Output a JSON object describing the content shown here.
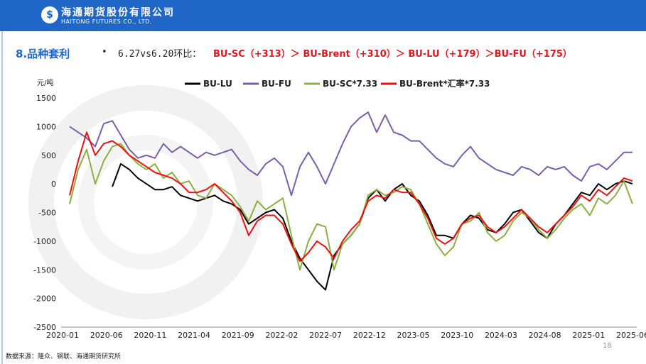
{
  "header": {
    "logo_cn": "海通期货股份有限公司",
    "logo_en": "HAITONG FUTURES CO., LTD."
  },
  "section": {
    "title": "8.品种套利",
    "bullet": "•",
    "subtitle_prefix": "6.27vs6.20环比：",
    "subtitle_ranking": "BU-SC（+313）＞ BU-Brent（+310）＞ BU-LU（+179）＞BU-FU（+175）"
  },
  "footer": {
    "source": "数据来源：隆众、钢联、海通期货研究所",
    "page_number": "18"
  },
  "colors": {
    "brand": "#1f66c7",
    "highlight": "#e8141b"
  },
  "chart_data": {
    "type": "line",
    "ylabel": "元/吨",
    "ylim": [
      -2500,
      1500
    ],
    "yticks": [
      1500,
      1000,
      500,
      0,
      -500,
      -1000,
      -1500,
      -2000,
      -2500
    ],
    "x_range": [
      "2020-01",
      "2025-07"
    ],
    "xticks": [
      "2020-01",
      "2020-06",
      "2020-11",
      "2021-04",
      "2021-09",
      "2022-02",
      "2022-07",
      "2022-12",
      "2023-05",
      "2023-10",
      "2024-03",
      "2024-08",
      "2025-01",
      "2025-06"
    ],
    "legend_position": "top",
    "grid": false,
    "series": [
      {
        "name": "BU-LU",
        "color": "#000000",
        "points": [
          [
            "2020-06",
            -50
          ],
          [
            "2020-07",
            350
          ],
          [
            "2020-08",
            250
          ],
          [
            "2020-09",
            100
          ],
          [
            "2020-10",
            0
          ],
          [
            "2020-11",
            -100
          ],
          [
            "2020-12",
            -100
          ],
          [
            "2021-01",
            -50
          ],
          [
            "2021-02",
            -200
          ],
          [
            "2021-03",
            -250
          ],
          [
            "2021-04",
            -300
          ],
          [
            "2021-05",
            -250
          ],
          [
            "2021-06",
            -200
          ],
          [
            "2021-07",
            -300
          ],
          [
            "2021-08",
            -350
          ],
          [
            "2021-09",
            -450
          ],
          [
            "2021-10",
            -700
          ],
          [
            "2021-11",
            -600
          ],
          [
            "2021-12",
            -500
          ],
          [
            "2022-01",
            -450
          ],
          [
            "2022-02",
            -600
          ],
          [
            "2022-03",
            -1000
          ],
          [
            "2022-04",
            -1300
          ],
          [
            "2022-05",
            -1500
          ],
          [
            "2022-06",
            -1700
          ],
          [
            "2022-07",
            -1850
          ],
          [
            "2022-08",
            -1250
          ],
          [
            "2022-09",
            -1050
          ],
          [
            "2022-10",
            -900
          ],
          [
            "2022-11",
            -700
          ],
          [
            "2022-12",
            -250
          ],
          [
            "2023-01",
            -100
          ],
          [
            "2023-02",
            -300
          ],
          [
            "2023-03",
            -100
          ],
          [
            "2023-04",
            0
          ],
          [
            "2023-05",
            -200
          ],
          [
            "2023-06",
            -300
          ],
          [
            "2023-07",
            -550
          ],
          [
            "2023-08",
            -900
          ],
          [
            "2023-09",
            -900
          ],
          [
            "2023-10",
            -950
          ],
          [
            "2023-11",
            -700
          ],
          [
            "2023-12",
            -550
          ],
          [
            "2024-01",
            -600
          ],
          [
            "2024-02",
            -800
          ],
          [
            "2024-03",
            -850
          ],
          [
            "2024-04",
            -700
          ],
          [
            "2024-05",
            -500
          ],
          [
            "2024-06",
            -450
          ],
          [
            "2024-07",
            -650
          ],
          [
            "2024-08",
            -850
          ],
          [
            "2024-09",
            -950
          ],
          [
            "2024-10",
            -700
          ],
          [
            "2024-11",
            -550
          ],
          [
            "2024-12",
            -350
          ],
          [
            "2025-01",
            -150
          ],
          [
            "2025-02",
            -200
          ],
          [
            "2025-03",
            0
          ],
          [
            "2025-04",
            -100
          ],
          [
            "2025-05",
            0
          ],
          [
            "2025-06",
            50
          ],
          [
            "2025-07",
            0
          ]
        ]
      },
      {
        "name": "BU-FU",
        "color": "#7a5ea8",
        "points": [
          [
            "2020-01",
            1000
          ],
          [
            "2020-02",
            900
          ],
          [
            "2020-03",
            800
          ],
          [
            "2020-04",
            650
          ],
          [
            "2020-05",
            1050
          ],
          [
            "2020-06",
            1100
          ],
          [
            "2020-07",
            850
          ],
          [
            "2020-08",
            600
          ],
          [
            "2020-09",
            450
          ],
          [
            "2020-10",
            500
          ],
          [
            "2020-11",
            450
          ],
          [
            "2020-12",
            700
          ],
          [
            "2021-01",
            550
          ],
          [
            "2021-02",
            650
          ],
          [
            "2021-03",
            550
          ],
          [
            "2021-04",
            450
          ],
          [
            "2021-05",
            550
          ],
          [
            "2021-06",
            500
          ],
          [
            "2021-07",
            550
          ],
          [
            "2021-08",
            600
          ],
          [
            "2021-09",
            400
          ],
          [
            "2021-10",
            250
          ],
          [
            "2021-11",
            150
          ],
          [
            "2021-12",
            350
          ],
          [
            "2022-01",
            450
          ],
          [
            "2022-02",
            300
          ],
          [
            "2022-03",
            -200
          ],
          [
            "2022-04",
            300
          ],
          [
            "2022-05",
            550
          ],
          [
            "2022-06",
            300
          ],
          [
            "2022-07",
            0
          ],
          [
            "2022-08",
            350
          ],
          [
            "2022-09",
            700
          ],
          [
            "2022-10",
            1000
          ],
          [
            "2022-11",
            1150
          ],
          [
            "2022-12",
            1250
          ],
          [
            "2023-01",
            900
          ],
          [
            "2023-02",
            1200
          ],
          [
            "2023-03",
            900
          ],
          [
            "2023-04",
            850
          ],
          [
            "2023-05",
            750
          ],
          [
            "2023-06",
            750
          ],
          [
            "2023-07",
            600
          ],
          [
            "2023-08",
            450
          ],
          [
            "2023-09",
            350
          ],
          [
            "2023-10",
            300
          ],
          [
            "2023-11",
            500
          ],
          [
            "2023-12",
            650
          ],
          [
            "2024-01",
            450
          ],
          [
            "2024-02",
            350
          ],
          [
            "2024-03",
            250
          ],
          [
            "2024-04",
            200
          ],
          [
            "2024-05",
            150
          ],
          [
            "2024-06",
            300
          ],
          [
            "2024-07",
            250
          ],
          [
            "2024-08",
            150
          ],
          [
            "2024-09",
            300
          ],
          [
            "2024-10",
            250
          ],
          [
            "2024-11",
            300
          ],
          [
            "2024-12",
            150
          ],
          [
            "2025-01",
            50
          ],
          [
            "2025-02",
            300
          ],
          [
            "2025-03",
            350
          ],
          [
            "2025-04",
            250
          ],
          [
            "2025-05",
            400
          ],
          [
            "2025-06",
            550
          ],
          [
            "2025-07",
            550
          ]
        ]
      },
      {
        "name": "BU-SC*7.33",
        "color": "#8cb040",
        "points": [
          [
            "2020-01",
            -350
          ],
          [
            "2020-02",
            250
          ],
          [
            "2020-03",
            600
          ],
          [
            "2020-04",
            0
          ],
          [
            "2020-05",
            400
          ],
          [
            "2020-06",
            650
          ],
          [
            "2020-07",
            700
          ],
          [
            "2020-08",
            500
          ],
          [
            "2020-09",
            350
          ],
          [
            "2020-10",
            250
          ],
          [
            "2020-11",
            350
          ],
          [
            "2020-12",
            100
          ],
          [
            "2021-01",
            200
          ],
          [
            "2021-02",
            0
          ],
          [
            "2021-03",
            50
          ],
          [
            "2021-04",
            -200
          ],
          [
            "2021-05",
            -250
          ],
          [
            "2021-06",
            0
          ],
          [
            "2021-07",
            -100
          ],
          [
            "2021-08",
            -200
          ],
          [
            "2021-09",
            -400
          ],
          [
            "2021-10",
            -650
          ],
          [
            "2021-11",
            -300
          ],
          [
            "2021-12",
            -450
          ],
          [
            "2022-01",
            -350
          ],
          [
            "2022-02",
            -250
          ],
          [
            "2022-03",
            -900
          ],
          [
            "2022-04",
            -1500
          ],
          [
            "2022-05",
            -1000
          ],
          [
            "2022-06",
            -700
          ],
          [
            "2022-07",
            -750
          ],
          [
            "2022-08",
            -1500
          ],
          [
            "2022-09",
            -1050
          ],
          [
            "2022-10",
            -900
          ],
          [
            "2022-11",
            -700
          ],
          [
            "2022-12",
            -200
          ],
          [
            "2023-01",
            -100
          ],
          [
            "2023-02",
            -200
          ],
          [
            "2023-03",
            -150
          ],
          [
            "2023-04",
            -50
          ],
          [
            "2023-05",
            -100
          ],
          [
            "2023-06",
            -350
          ],
          [
            "2023-07",
            -700
          ],
          [
            "2023-08",
            -1050
          ],
          [
            "2023-09",
            -1250
          ],
          [
            "2023-10",
            -1100
          ],
          [
            "2023-11",
            -700
          ],
          [
            "2023-12",
            -650
          ],
          [
            "2024-01",
            -500
          ],
          [
            "2024-02",
            -850
          ],
          [
            "2024-03",
            -1000
          ],
          [
            "2024-04",
            -900
          ],
          [
            "2024-05",
            -650
          ],
          [
            "2024-06",
            -500
          ],
          [
            "2024-07",
            -600
          ],
          [
            "2024-08",
            -800
          ],
          [
            "2024-09",
            -950
          ],
          [
            "2024-10",
            -800
          ],
          [
            "2024-11",
            -600
          ],
          [
            "2024-12",
            -450
          ],
          [
            "2025-01",
            -350
          ],
          [
            "2025-02",
            -550
          ],
          [
            "2025-03",
            -250
          ],
          [
            "2025-04",
            -350
          ],
          [
            "2025-05",
            -200
          ],
          [
            "2025-06",
            50
          ],
          [
            "2025-07",
            -350
          ]
        ]
      },
      {
        "name": "BU-Brent*汇率*7.33",
        "color": "#ee1111",
        "points": [
          [
            "2020-01",
            -200
          ],
          [
            "2020-02",
            400
          ],
          [
            "2020-03",
            900
          ],
          [
            "2020-04",
            500
          ],
          [
            "2020-05",
            700
          ],
          [
            "2020-06",
            750
          ],
          [
            "2020-07",
            650
          ],
          [
            "2020-08",
            500
          ],
          [
            "2020-09",
            400
          ],
          [
            "2020-10",
            300
          ],
          [
            "2020-11",
            200
          ],
          [
            "2020-12",
            150
          ],
          [
            "2021-01",
            100
          ],
          [
            "2021-02",
            0
          ],
          [
            "2021-03",
            -150
          ],
          [
            "2021-04",
            -150
          ],
          [
            "2021-05",
            -100
          ],
          [
            "2021-06",
            0
          ],
          [
            "2021-07",
            -150
          ],
          [
            "2021-08",
            -300
          ],
          [
            "2021-09",
            -500
          ],
          [
            "2021-10",
            -900
          ],
          [
            "2021-11",
            -650
          ],
          [
            "2021-12",
            -550
          ],
          [
            "2022-01",
            -550
          ],
          [
            "2022-02",
            -700
          ],
          [
            "2022-03",
            -1050
          ],
          [
            "2022-04",
            -1350
          ],
          [
            "2022-05",
            -1200
          ],
          [
            "2022-06",
            -1000
          ],
          [
            "2022-07",
            -1100
          ],
          [
            "2022-08",
            -1300
          ],
          [
            "2022-09",
            -1000
          ],
          [
            "2022-10",
            -800
          ],
          [
            "2022-11",
            -650
          ],
          [
            "2022-12",
            -300
          ],
          [
            "2023-01",
            -200
          ],
          [
            "2023-02",
            -250
          ],
          [
            "2023-03",
            -100
          ],
          [
            "2023-04",
            -150
          ],
          [
            "2023-05",
            -150
          ],
          [
            "2023-06",
            -350
          ],
          [
            "2023-07",
            -600
          ],
          [
            "2023-08",
            -950
          ],
          [
            "2023-09",
            -1050
          ],
          [
            "2023-10",
            -950
          ],
          [
            "2023-11",
            -700
          ],
          [
            "2023-12",
            -600
          ],
          [
            "2024-01",
            -550
          ],
          [
            "2024-02",
            -750
          ],
          [
            "2024-03",
            -850
          ],
          [
            "2024-04",
            -750
          ],
          [
            "2024-05",
            -600
          ],
          [
            "2024-06",
            -450
          ],
          [
            "2024-07",
            -600
          ],
          [
            "2024-08",
            -750
          ],
          [
            "2024-09",
            -850
          ],
          [
            "2024-10",
            -700
          ],
          [
            "2024-11",
            -550
          ],
          [
            "2024-12",
            -400
          ],
          [
            "2025-01",
            -200
          ],
          [
            "2025-02",
            -300
          ],
          [
            "2025-03",
            -100
          ],
          [
            "2025-04",
            -200
          ],
          [
            "2025-05",
            -50
          ],
          [
            "2025-06",
            100
          ],
          [
            "2025-07",
            50
          ]
        ]
      }
    ]
  }
}
